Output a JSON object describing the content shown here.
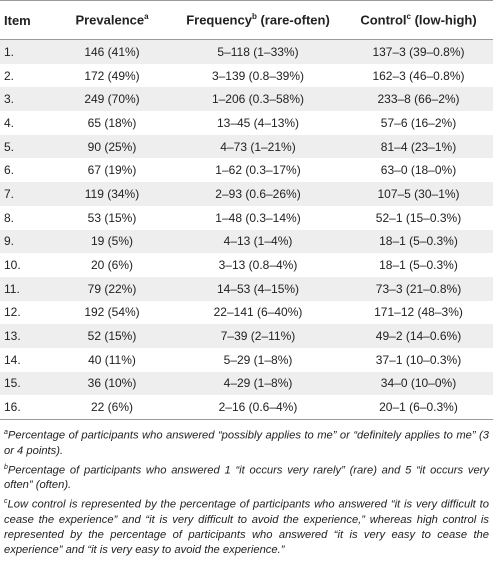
{
  "headers": {
    "item": "Item",
    "prevalence": "Prevalence",
    "prevalence_sup": "a",
    "frequency": "Frequency",
    "frequency_sup": "b",
    "frequency_suffix": " (rare-often)",
    "control": "Control",
    "control_sup": "c",
    "control_suffix": " (low-high)"
  },
  "rows": [
    {
      "item": "1.",
      "prevalence": "146 (41%)",
      "frequency": "5–118 (1–33%)",
      "control": "137–3 (39–0.8%)"
    },
    {
      "item": "2.",
      "prevalence": "172 (49%)",
      "frequency": "3–139 (0.8–39%)",
      "control": "162–3 (46–0.8%)"
    },
    {
      "item": "3.",
      "prevalence": "249 (70%)",
      "frequency": "1–206 (0.3–58%)",
      "control": "233–8 (66–2%)"
    },
    {
      "item": "4.",
      "prevalence": "65 (18%)",
      "frequency": "13–45 (4–13%)",
      "control": "57–6 (16–2%)"
    },
    {
      "item": "5.",
      "prevalence": "90 (25%)",
      "frequency": "4–73 (1–21%)",
      "control": "81–4 (23–1%)"
    },
    {
      "item": "6.",
      "prevalence": "67 (19%)",
      "frequency": "1–62 (0.3–17%)",
      "control": "63–0 (18–0%)"
    },
    {
      "item": "7.",
      "prevalence": "119 (34%)",
      "frequency": "2–93 (0.6–26%)",
      "control": "107–5 (30–1%)"
    },
    {
      "item": "8.",
      "prevalence": "53 (15%)",
      "frequency": "1–48 (0.3–14%)",
      "control": "52–1 (15–0.3%)"
    },
    {
      "item": "9.",
      "prevalence": "19 (5%)",
      "frequency": "4–13 (1–4%)",
      "control": "18–1 (5–0.3%)"
    },
    {
      "item": "10.",
      "prevalence": "20 (6%)",
      "frequency": "3–13 (0.8–4%)",
      "control": "18–1 (5–0.3%)"
    },
    {
      "item": "11.",
      "prevalence": "79 (22%)",
      "frequency": "14–53 (4–15%)",
      "control": "73–3 (21–0.8%)"
    },
    {
      "item": "12.",
      "prevalence": "192 (54%)",
      "frequency": "22–141 (6–40%)",
      "control": "171–12 (48–3%)"
    },
    {
      "item": "13.",
      "prevalence": "52 (15%)",
      "frequency": "7–39 (2–11%)",
      "control": "49–2 (14–0.6%)"
    },
    {
      "item": "14.",
      "prevalence": "40 (11%)",
      "frequency": "5–29 (1–8%)",
      "control": "37–1 (10–0.3%)"
    },
    {
      "item": "15.",
      "prevalence": "36 (10%)",
      "frequency": "4–29 (1–8%)",
      "control": "34–0 (10–0%)"
    },
    {
      "item": "16.",
      "prevalence": "22 (6%)",
      "frequency": "2–16 (0.6–4%)",
      "control": "20–1 (6–0.3%)"
    }
  ],
  "footnotes": [
    {
      "mark": "a",
      "text": "Percentage of participants who answered “possibly applies to me” or “definitely applies to me” (3 or 4 points)."
    },
    {
      "mark": "b",
      "text": "Percentage of participants who answered 1 “it occurs very rarely” (rare) and 5 “it occurs very often” (often)."
    },
    {
      "mark": "c",
      "text": "Low control is represented by the percentage of participants who answered “it is very difficult to cease the experience” and “it is very difficult to avoid the experience,” whereas high control is represented by the percentage of participants who answered “it is very easy to cease the experience” and “it is very easy to avoid the experience.”"
    }
  ]
}
